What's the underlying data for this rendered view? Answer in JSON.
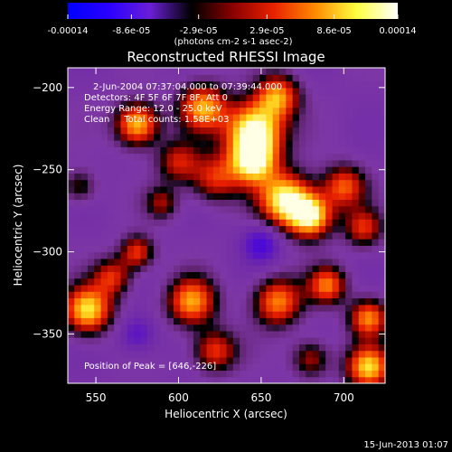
{
  "chart_data": {
    "type": "heatmap",
    "title": "Reconstructed RHESSI Image",
    "xlabel": "Heliocentric X (arcsec)",
    "ylabel": "Heliocentric Y (arcsec)",
    "xlim": [
      533,
      725
    ],
    "ylim": [
      -380,
      -188
    ],
    "x_ticks": [
      550,
      600,
      650,
      700
    ],
    "x_tick_labels": [
      "550",
      "600",
      "650",
      "700"
    ],
    "y_ticks": [
      -200,
      -250,
      -300,
      -350
    ],
    "y_tick_labels": [
      "-200",
      "-250",
      "-300",
      "-350"
    ],
    "colorbar": {
      "range": [
        -0.00014,
        0.00014
      ],
      "ticks": [
        -0.00014,
        -8.6e-05,
        -2.9e-05,
        2.9e-05,
        8.6e-05,
        0.00014
      ],
      "tick_labels": [
        "-0.00014",
        "-8.6e-05",
        "-2.9e-05",
        "2.9e-05",
        "8.6e-05",
        "0.00014"
      ],
      "unit_label": "(photons cm-2 s-1 asec-2)",
      "stops": [
        "#0000ff",
        "#2a00ff",
        "#6a1fd6",
        "#000000",
        "#8a0000",
        "#e82200",
        "#ff8a00",
        "#ffff40",
        "#ffffff"
      ]
    },
    "annotations": [
      "2-Jun-2004 07:37:04.000 to 07:39:44.000",
      "Detectors: 4F 5F 6F 7F 8F, Att 0",
      "Energy Range: 12.0 - 25.0 keV",
      "Clean     Total counts: 1.58E+03",
      "Position of Peak = [646,-226]"
    ],
    "peak": [
      646,
      -226
    ],
    "timestamp": "15-Jun-2013 01:07",
    "features": [
      {
        "x": 575,
        "y": -222,
        "sigma": 9,
        "amp": 0.9
      },
      {
        "x": 615,
        "y": -212,
        "sigma": 10,
        "amp": 0.8
      },
      {
        "x": 600,
        "y": -245,
        "sigma": 9,
        "amp": 0.5
      },
      {
        "x": 590,
        "y": -270,
        "sigma": 7,
        "amp": 0.4
      },
      {
        "x": 622,
        "y": -255,
        "sigma": 10,
        "amp": 0.55
      },
      {
        "x": 646,
        "y": -226,
        "sigma": 12,
        "amp": 1.15
      },
      {
        "x": 645,
        "y": -245,
        "sigma": 10,
        "amp": 0.95
      },
      {
        "x": 660,
        "y": -205,
        "sigma": 9,
        "amp": 0.75
      },
      {
        "x": 665,
        "y": -268,
        "sigma": 11,
        "amp": 1.05
      },
      {
        "x": 680,
        "y": -278,
        "sigma": 9,
        "amp": 1.0
      },
      {
        "x": 700,
        "y": -260,
        "sigma": 9,
        "amp": 0.65
      },
      {
        "x": 712,
        "y": -285,
        "sigma": 8,
        "amp": 0.55
      },
      {
        "x": 575,
        "y": -300,
        "sigma": 7,
        "amp": 0.6
      },
      {
        "x": 545,
        "y": -335,
        "sigma": 10,
        "amp": 0.95
      },
      {
        "x": 560,
        "y": -315,
        "sigma": 8,
        "amp": 0.55
      },
      {
        "x": 608,
        "y": -330,
        "sigma": 10,
        "amp": 0.8
      },
      {
        "x": 622,
        "y": -360,
        "sigma": 9,
        "amp": 0.6
      },
      {
        "x": 660,
        "y": -330,
        "sigma": 10,
        "amp": 0.75
      },
      {
        "x": 690,
        "y": -320,
        "sigma": 8,
        "amp": 0.7
      },
      {
        "x": 715,
        "y": -340,
        "sigma": 8,
        "amp": 0.75
      },
      {
        "x": 715,
        "y": -370,
        "sigma": 9,
        "amp": 0.9
      },
      {
        "x": 680,
        "y": -365,
        "sigma": 8,
        "amp": 0.45
      },
      {
        "x": 540,
        "y": -260,
        "sigma": 7,
        "amp": 0.35
      },
      {
        "x": 650,
        "y": -295,
        "sigma": 8,
        "amp": -0.45
      },
      {
        "x": 575,
        "y": -350,
        "sigma": 8,
        "amp": -0.35
      }
    ]
  }
}
